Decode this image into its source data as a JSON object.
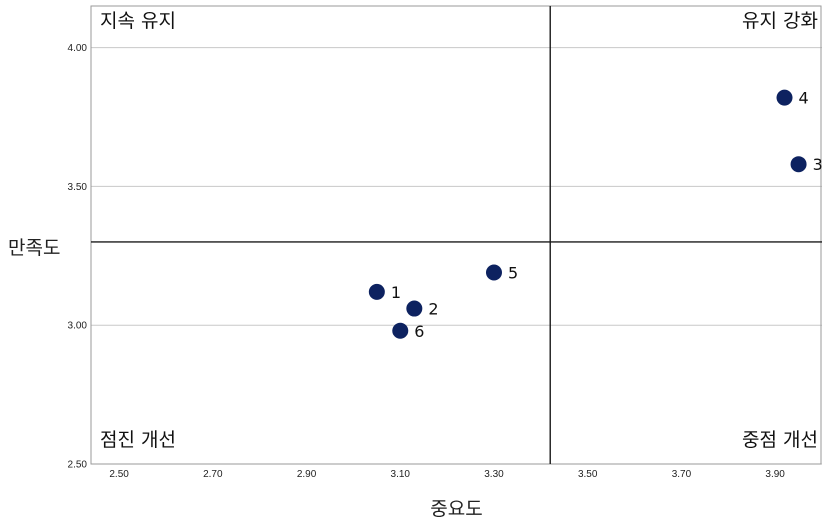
{
  "chart_data": {
    "type": "scatter",
    "title": "",
    "xlabel": "중요도",
    "ylabel": "만족도",
    "xlim": [
      2.44,
      4.0
    ],
    "ylim": [
      2.5,
      4.15
    ],
    "x_ticks": [
      "2.50",
      "2.70",
      "2.90",
      "3.10",
      "3.30",
      "3.50",
      "3.70",
      "3.90"
    ],
    "x_tick_values": [
      2.5,
      2.7,
      2.9,
      3.1,
      3.3,
      3.5,
      3.7,
      3.9
    ],
    "y_ticks": [
      "2.50",
      "3.00",
      "3.50",
      "4.00"
    ],
    "y_tick_values": [
      2.5,
      3.0,
      3.5,
      4.0
    ],
    "grid": "horizontal",
    "reference_lines": {
      "x": 3.42,
      "y": 3.3
    },
    "quadrant_labels": {
      "top_left": "지속 유지",
      "top_right": "유지 강화",
      "bottom_left": "점진 개선",
      "bottom_right": "중점 개선"
    },
    "marker_color": "#0d2260",
    "points": [
      {
        "label": "1",
        "x": 3.05,
        "y": 3.12
      },
      {
        "label": "2",
        "x": 3.13,
        "y": 3.06
      },
      {
        "label": "3",
        "x": 3.95,
        "y": 3.58
      },
      {
        "label": "4",
        "x": 3.92,
        "y": 3.82
      },
      {
        "label": "5",
        "x": 3.3,
        "y": 3.19
      },
      {
        "label": "6",
        "x": 3.1,
        "y": 2.98
      }
    ]
  }
}
